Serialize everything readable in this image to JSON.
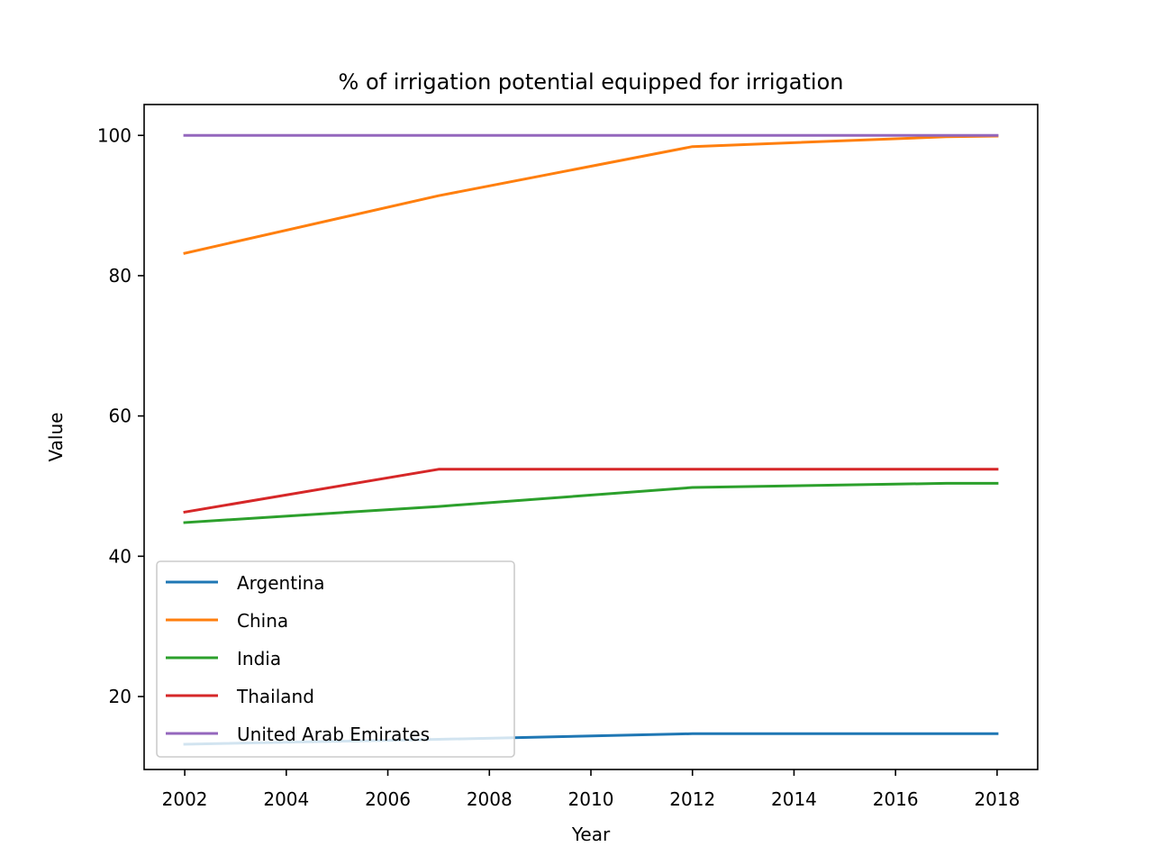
{
  "chart_data": {
    "type": "line",
    "title": "% of irrigation potential equipped for irrigation",
    "xlabel": "Year",
    "ylabel": "Value",
    "xlim": [
      2001.2,
      2018.8
    ],
    "ylim": [
      9.6,
      104.4
    ],
    "xticks": [
      2002,
      2004,
      2006,
      2008,
      2010,
      2012,
      2014,
      2016,
      2018
    ],
    "yticks": [
      20,
      40,
      60,
      80,
      100
    ],
    "grid": false,
    "legend_position": "lower-left",
    "series": [
      {
        "name": "Argentina",
        "color": "#1f77b4",
        "x": [
          2002,
          2007,
          2012,
          2017,
          2018
        ],
        "y": [
          13.2,
          13.9,
          14.7,
          14.7,
          14.7
        ]
      },
      {
        "name": "China",
        "color": "#ff7f0e",
        "x": [
          2002,
          2007,
          2012,
          2017,
          2018
        ],
        "y": [
          83.2,
          91.4,
          98.4,
          99.8,
          99.9
        ]
      },
      {
        "name": "India",
        "color": "#2ca02c",
        "x": [
          2002,
          2007,
          2012,
          2017,
          2018
        ],
        "y": [
          44.8,
          47.1,
          49.8,
          50.4,
          50.4
        ]
      },
      {
        "name": "Thailand",
        "color": "#d62728",
        "x": [
          2002,
          2007,
          2012,
          2017,
          2018
        ],
        "y": [
          46.3,
          52.4,
          52.4,
          52.4,
          52.4
        ]
      },
      {
        "name": "United Arab Emirates",
        "color": "#9467bd",
        "x": [
          2002,
          2007,
          2012,
          2017,
          2018
        ],
        "y": [
          100,
          100,
          100,
          100,
          100
        ]
      }
    ]
  }
}
